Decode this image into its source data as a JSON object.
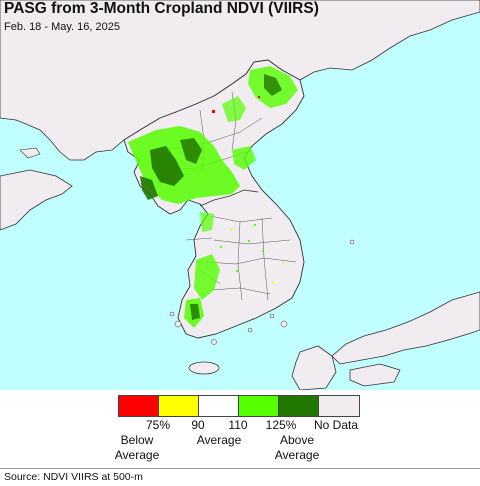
{
  "map": {
    "title": "PASG from 3-Month Cropland NDVI (VIIRS)",
    "date_range": "Feb. 18 - May. 16, 2025",
    "colors": {
      "ocean": "#c1ffff",
      "land": "#f0ecf0",
      "border": "#333333",
      "below_75": "#ff0000",
      "r75_90": "#ffff00",
      "r90_110": "#ffffff",
      "r110_125": "#55ff00",
      "above_125": "#227700",
      "no_data": "#f0ecf0"
    }
  },
  "legend": {
    "ticks": [
      "75%",
      "90",
      "110",
      "125%",
      "No Data"
    ],
    "below_label": "Below\nAverage",
    "average_label": "Average",
    "above_label": "Above\nAverage"
  },
  "footer": {
    "source": "Source: NDVI VIIRS at 500-m"
  }
}
